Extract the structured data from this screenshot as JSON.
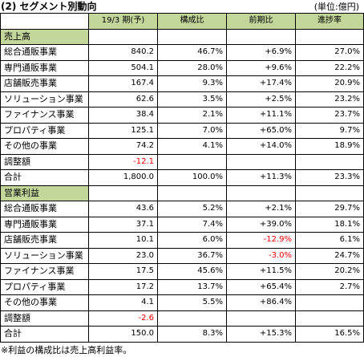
{
  "title": "(2) セグメント別動向",
  "unit": "(単位:億円)",
  "headers": [
    "",
    "19/3 期(予)",
    "構成比",
    "前期比",
    "進捗率"
  ],
  "sections": [
    {
      "label": "売上高",
      "rows": [
        {
          "name": "総合通販事業",
          "forecast": "840.2",
          "share": "46.7%",
          "yoy": "+6.9%",
          "progress": "27.0%"
        },
        {
          "name": "専門通販事業",
          "forecast": "504.1",
          "share": "28.0%",
          "yoy": "+9.6%",
          "progress": "22.2%"
        },
        {
          "name": "店舗販売事業",
          "forecast": "167.4",
          "share": "9.3%",
          "yoy": "+17.4%",
          "progress": "20.9%"
        },
        {
          "name": "ソリューション事業",
          "forecast": "62.6",
          "share": "3.5%",
          "yoy": "+2.5%",
          "progress": "23.2%"
        },
        {
          "name": "ファイナンス事業",
          "forecast": "38.4",
          "share": "2.1%",
          "yoy": "+11.1%",
          "progress": "23.7%"
        },
        {
          "name": "プロパティ事業",
          "forecast": "125.1",
          "share": "7.0%",
          "yoy": "+65.0%",
          "progress": "9.7%"
        },
        {
          "name": "その他の事業",
          "forecast": "74.2",
          "share": "4.1%",
          "yoy": "+14.0%",
          "progress": "18.9%"
        },
        {
          "name": "調整額",
          "forecast": "-12.1",
          "share": "",
          "yoy": "",
          "progress": ""
        },
        {
          "name": "合計",
          "forecast": "1,800.0",
          "share": "100.0%",
          "yoy": "+11.3%",
          "progress": "23.3%"
        }
      ]
    },
    {
      "label": "営業利益",
      "rows": [
        {
          "name": "総合通販事業",
          "forecast": "43.6",
          "share": "5.2%",
          "yoy": "+2.1%",
          "progress": "29.7%"
        },
        {
          "name": "専門通販事業",
          "forecast": "37.1",
          "share": "7.4%",
          "yoy": "+39.0%",
          "progress": "18.1%"
        },
        {
          "name": "店舗販売事業",
          "forecast": "10.1",
          "share": "6.0%",
          "yoy": "-12.9%",
          "progress": "6.1%"
        },
        {
          "name": "ソリューション事業",
          "forecast": "23.0",
          "share": "36.7%",
          "yoy": "-3.0%",
          "progress": "24.7%"
        },
        {
          "name": "ファイナンス事業",
          "forecast": "17.5",
          "share": "45.6%",
          "yoy": "+11.5%",
          "progress": "20.2%"
        },
        {
          "name": "プロパティ事業",
          "forecast": "17.2",
          "share": "13.7%",
          "yoy": "+65.4%",
          "progress": "2.7%"
        },
        {
          "name": "その他の事業",
          "forecast": "4.1",
          "share": "5.5%",
          "yoy": "+86.4%",
          "progress": ""
        },
        {
          "name": "調整額",
          "forecast": "-2.6",
          "share": "",
          "yoy": "",
          "progress": ""
        },
        {
          "name": "合計",
          "forecast": "150.0",
          "share": "8.3%",
          "yoy": "+15.3%",
          "progress": "16.5%"
        }
      ]
    }
  ],
  "footnote": "※利益の構成比は売上高利益率。",
  "colors": {
    "header_bg": "#c4d79b",
    "negative": "#ff0000",
    "border": "#000000"
  }
}
